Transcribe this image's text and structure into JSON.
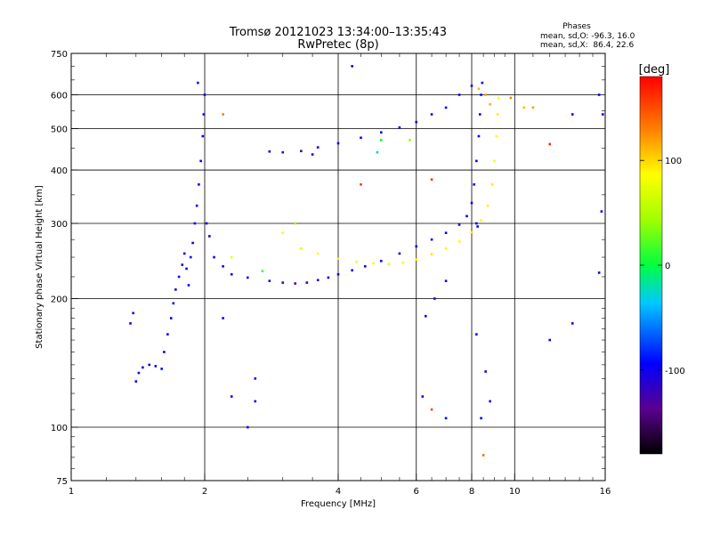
{
  "header": {
    "title_line1": "Tromsø 20121023 13:34:00–13:35:43",
    "title_line2": "RwPretec (8p)",
    "phases_heading": "Phases",
    "phases_line1": "mean, sd,O: -96.3, 16.0",
    "phases_line2": "mean, sd,X:  86.4, 22.6"
  },
  "colorbar": {
    "title": "[deg]",
    "ticks": [
      {
        "value": 100,
        "label": "100"
      },
      {
        "value": 0,
        "label": "0"
      },
      {
        "value": -100,
        "label": "-100"
      }
    ]
  },
  "chart_data": {
    "type": "scatter",
    "xlabel": "Frequency [MHz]",
    "ylabel": "Stationary phase Virtual Height [km]",
    "xscale": "log",
    "yscale": "log",
    "xlim": [
      1,
      16
    ],
    "ylim": [
      75,
      750
    ],
    "grid": true,
    "color_range": [
      -180,
      180
    ],
    "x_ticks": [
      {
        "value": 1,
        "label": "1"
      },
      {
        "value": 2,
        "label": "2"
      },
      {
        "value": 4,
        "label": "4"
      },
      {
        "value": 6,
        "label": "6"
      },
      {
        "value": 8,
        "label": "8"
      },
      {
        "value": 10,
        "label": "10"
      },
      {
        "value": 16,
        "label": "16"
      }
    ],
    "y_ticks": [
      {
        "value": 75,
        "label": "75"
      },
      {
        "value": 100,
        "label": "100"
      },
      {
        "value": 200,
        "label": "200"
      },
      {
        "value": 300,
        "label": "300"
      },
      {
        "value": 400,
        "label": "400"
      },
      {
        "value": 500,
        "label": "500"
      },
      {
        "value": 600,
        "label": "600"
      },
      {
        "value": 750,
        "label": "750"
      }
    ],
    "x_gridlines": [
      2,
      4,
      6,
      8,
      10
    ],
    "y_gridlines": [
      100,
      200,
      300,
      400,
      500,
      600
    ],
    "series": [
      {
        "points": [
          [
            1.4,
            128,
            -95
          ],
          [
            1.42,
            134,
            -100
          ],
          [
            1.45,
            138,
            -98
          ],
          [
            1.5,
            140,
            -97
          ],
          [
            1.55,
            139,
            -100
          ],
          [
            1.6,
            137,
            -96
          ],
          [
            1.62,
            150,
            -95
          ],
          [
            1.65,
            165,
            -100
          ],
          [
            1.68,
            180,
            -97
          ],
          [
            1.7,
            195,
            -96
          ],
          [
            1.72,
            210,
            -99
          ],
          [
            1.75,
            225,
            -95
          ],
          [
            1.78,
            240,
            -98
          ],
          [
            1.8,
            255,
            -100
          ],
          [
            1.82,
            235,
            -96
          ],
          [
            1.84,
            215,
            -97
          ],
          [
            1.86,
            250,
            -95
          ],
          [
            1.88,
            270,
            -98
          ],
          [
            1.9,
            300,
            -96
          ],
          [
            1.92,
            330,
            -100
          ],
          [
            1.94,
            370,
            -95
          ],
          [
            1.96,
            420,
            -97
          ],
          [
            1.98,
            480,
            -99
          ],
          [
            1.99,
            540,
            -96
          ],
          [
            2.0,
            600,
            -100
          ],
          [
            1.93,
            640,
            -95
          ],
          [
            2.02,
            300,
            -97
          ],
          [
            2.05,
            280,
            -98
          ],
          [
            2.1,
            250,
            -96
          ],
          [
            2.2,
            238,
            -100
          ],
          [
            1.38,
            185,
            -95
          ],
          [
            1.36,
            175,
            -97
          ]
        ]
      },
      {
        "points": [
          [
            2.3,
            228,
            -95
          ],
          [
            2.5,
            224,
            -98
          ],
          [
            2.8,
            220,
            -100
          ],
          [
            3.0,
            218,
            -120
          ],
          [
            3.2,
            217,
            -125
          ],
          [
            3.4,
            218,
            -118
          ],
          [
            3.6,
            221,
            -110
          ],
          [
            3.8,
            224,
            -100
          ],
          [
            4.0,
            228,
            -97
          ],
          [
            4.3,
            233,
            -95
          ],
          [
            4.6,
            238,
            -98
          ],
          [
            5.0,
            245,
            -96
          ],
          [
            5.5,
            255,
            -100
          ],
          [
            6.0,
            265,
            -98
          ],
          [
            6.5,
            275,
            -96
          ],
          [
            7.0,
            285,
            -95
          ],
          [
            7.5,
            298,
            -97
          ],
          [
            7.8,
            312,
            -100
          ],
          [
            8.0,
            335,
            -98
          ],
          [
            8.1,
            370,
            -96
          ],
          [
            8.2,
            420,
            -100
          ],
          [
            8.3,
            480,
            -97
          ],
          [
            8.35,
            540,
            -95
          ],
          [
            8.4,
            600,
            -98
          ],
          [
            8.45,
            640,
            -96
          ],
          [
            8.2,
            300,
            -100
          ],
          [
            8.25,
            295,
            -97
          ]
        ]
      },
      {
        "points": [
          [
            3.3,
            262,
            70
          ],
          [
            3.6,
            255,
            85
          ],
          [
            4.0,
            248,
            90
          ],
          [
            4.4,
            244,
            80
          ],
          [
            4.8,
            242,
            88
          ],
          [
            5.2,
            241,
            92
          ],
          [
            5.6,
            243,
            85
          ],
          [
            6.0,
            247,
            90
          ],
          [
            6.5,
            254,
            95
          ],
          [
            7.0,
            262,
            80
          ],
          [
            7.5,
            272,
            88
          ],
          [
            8.0,
            286,
            92
          ],
          [
            8.4,
            305,
            85
          ],
          [
            8.7,
            330,
            90
          ],
          [
            8.9,
            370,
            95
          ],
          [
            9.0,
            420,
            82
          ],
          [
            9.1,
            480,
            88
          ],
          [
            9.15,
            540,
            92
          ],
          [
            9.2,
            590,
            86
          ],
          [
            8.8,
            570,
            115
          ],
          [
            8.6,
            600,
            120
          ],
          [
            8.3,
            620,
            110
          ]
        ]
      },
      {
        "points": [
          [
            2.8,
            442,
            -100
          ],
          [
            3.0,
            440,
            -110
          ],
          [
            3.3,
            443,
            -120
          ],
          [
            3.6,
            452,
            -110
          ],
          [
            4.0,
            462,
            -100
          ],
          [
            4.5,
            476,
            -97
          ],
          [
            5.0,
            490,
            -95
          ],
          [
            5.5,
            503,
            -98
          ],
          [
            6.0,
            518,
            -96
          ],
          [
            6.5,
            540,
            -100
          ],
          [
            7.0,
            560,
            -95
          ],
          [
            7.5,
            600,
            -97
          ],
          [
            8.0,
            630,
            -98
          ]
        ]
      },
      {
        "points": [
          [
            2.6,
            130,
            -95
          ],
          [
            2.6,
            115,
            -96
          ],
          [
            2.3,
            118,
            -97
          ],
          [
            2.5,
            100,
            -98
          ],
          [
            7.0,
            105,
            -95
          ],
          [
            6.2,
            118,
            -100
          ],
          [
            8.2,
            165,
            -96
          ],
          [
            8.6,
            135,
            -98
          ],
          [
            8.8,
            115,
            -97
          ],
          [
            8.5,
            86,
            140
          ],
          [
            6.5,
            110,
            150
          ],
          [
            7.0,
            220,
            -95
          ],
          [
            6.3,
            182,
            -96
          ],
          [
            6.6,
            200,
            -97
          ],
          [
            8.4,
            105,
            -98
          ],
          [
            13.5,
            175,
            -100
          ],
          [
            15.5,
            230,
            -96
          ],
          [
            15.7,
            320,
            -95
          ],
          [
            15.8,
            540,
            -98
          ],
          [
            15.5,
            600,
            -97
          ],
          [
            13.5,
            540,
            -96
          ],
          [
            12.0,
            460,
            165
          ],
          [
            11.0,
            560,
            120
          ],
          [
            10.5,
            560,
            110
          ],
          [
            9.8,
            590,
            130
          ],
          [
            4.5,
            370,
            160
          ],
          [
            3.0,
            285,
            90
          ],
          [
            3.2,
            300,
            40
          ],
          [
            2.2,
            540,
            130
          ],
          [
            2.3,
            250,
            80
          ],
          [
            2.7,
            232,
            15
          ],
          [
            4.3,
            700,
            -95
          ],
          [
            3.5,
            435,
            -100
          ],
          [
            5.0,
            470,
            0
          ],
          [
            4.9,
            440,
            -30
          ],
          [
            5.8,
            470,
            40
          ],
          [
            6.5,
            380,
            160
          ],
          [
            2.2,
            180,
            -96
          ],
          [
            12.0,
            160,
            -95
          ]
        ]
      }
    ]
  }
}
